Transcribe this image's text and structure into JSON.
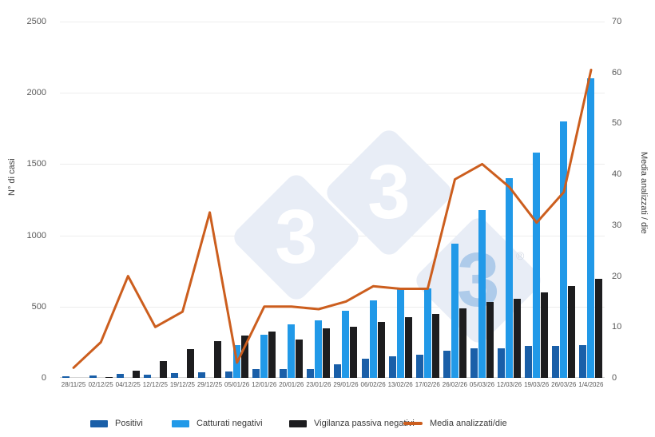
{
  "colors": {
    "positivi": "#1A5FA8",
    "catturati": "#2199E8",
    "vigilanza": "#1D1D1F",
    "media_line": "#CC5E1E",
    "grid": "#ededed",
    "watermark_diamond": "#E8EDF6",
    "watermark_three_white": "#FFFFFF",
    "watermark_three_blue": "#AECBEA"
  },
  "left_axis": {
    "title": "N° di casi",
    "min": 0,
    "max": 2500,
    "ticks": [
      0,
      500,
      1000,
      1500,
      2000,
      2500
    ]
  },
  "right_axis": {
    "title": "Media analizzati / die",
    "min": 0,
    "max": 70,
    "ticks": [
      0,
      10,
      20,
      30,
      40,
      50,
      60,
      70
    ]
  },
  "watermark": {
    "registered_mark": "®",
    "glyph": "3"
  },
  "legend": [
    {
      "label": "Positivi",
      "type": "bar",
      "color_key": "positivi",
      "x": 113
    },
    {
      "label": "Catturati negativi",
      "type": "bar",
      "color_key": "catturati",
      "x": 215
    },
    {
      "label": "Vigilanza passiva negativi",
      "type": "bar",
      "color_key": "vigilanza",
      "x": 362
    },
    {
      "label": "Media analizzati/die",
      "type": "line",
      "color_key": "media_line",
      "x": 505
    }
  ],
  "chart_data": {
    "type": "bar+line",
    "categories": [
      "28/11/25",
      "02/12/25",
      "04/12/25",
      "12/12/25",
      "19/12/25",
      "29/12/25",
      "05/01/26",
      "12/01/26",
      "20/01/26",
      "23/01/26",
      "29/01/26",
      "06/02/26",
      "13/02/26",
      "17/02/26",
      "26/02/26",
      "05/03/26",
      "12/03/26",
      "19/03/26",
      "26/03/26",
      "1/4/2026"
    ],
    "series": [
      {
        "name": "Positivi",
        "kind": "bar",
        "axis": "left",
        "color_key": "positivi",
        "values": [
          10,
          15,
          28,
          25,
          35,
          38,
          45,
          60,
          60,
          62,
          95,
          135,
          150,
          160,
          190,
          210,
          210,
          225,
          227,
          232
        ]
      },
      {
        "name": "Catturati negativi",
        "kind": "bar",
        "axis": "left",
        "color_key": "catturati",
        "values": [
          0,
          0,
          0,
          0,
          0,
          0,
          230,
          305,
          375,
          405,
          470,
          545,
          625,
          630,
          940,
          1180,
          1400,
          1580,
          1800,
          2100
        ]
      },
      {
        "name": "Vigilanza passiva negativi",
        "kind": "bar",
        "axis": "left",
        "color_key": "vigilanza",
        "values": [
          0,
          8,
          50,
          115,
          200,
          260,
          295,
          325,
          270,
          345,
          360,
          390,
          425,
          450,
          490,
          535,
          555,
          600,
          645,
          695
        ]
      },
      {
        "name": "Media analizzati/die",
        "kind": "line",
        "axis": "right",
        "color_key": "media_line",
        "values": [
          2,
          7,
          20,
          10,
          13,
          32.5,
          3,
          14,
          14,
          13.5,
          15,
          18,
          17.5,
          17.5,
          39,
          42,
          37.5,
          30.5,
          36.5,
          60.5
        ]
      }
    ],
    "title": "",
    "xlabel": "",
    "ylabel_left": "N° di casi",
    "ylabel_right": "Media analizzati / die",
    "ylim_left": [
      0,
      2500
    ],
    "ylim_right": [
      0,
      70
    ],
    "grid": "horizontal",
    "legend_position": "bottom"
  }
}
